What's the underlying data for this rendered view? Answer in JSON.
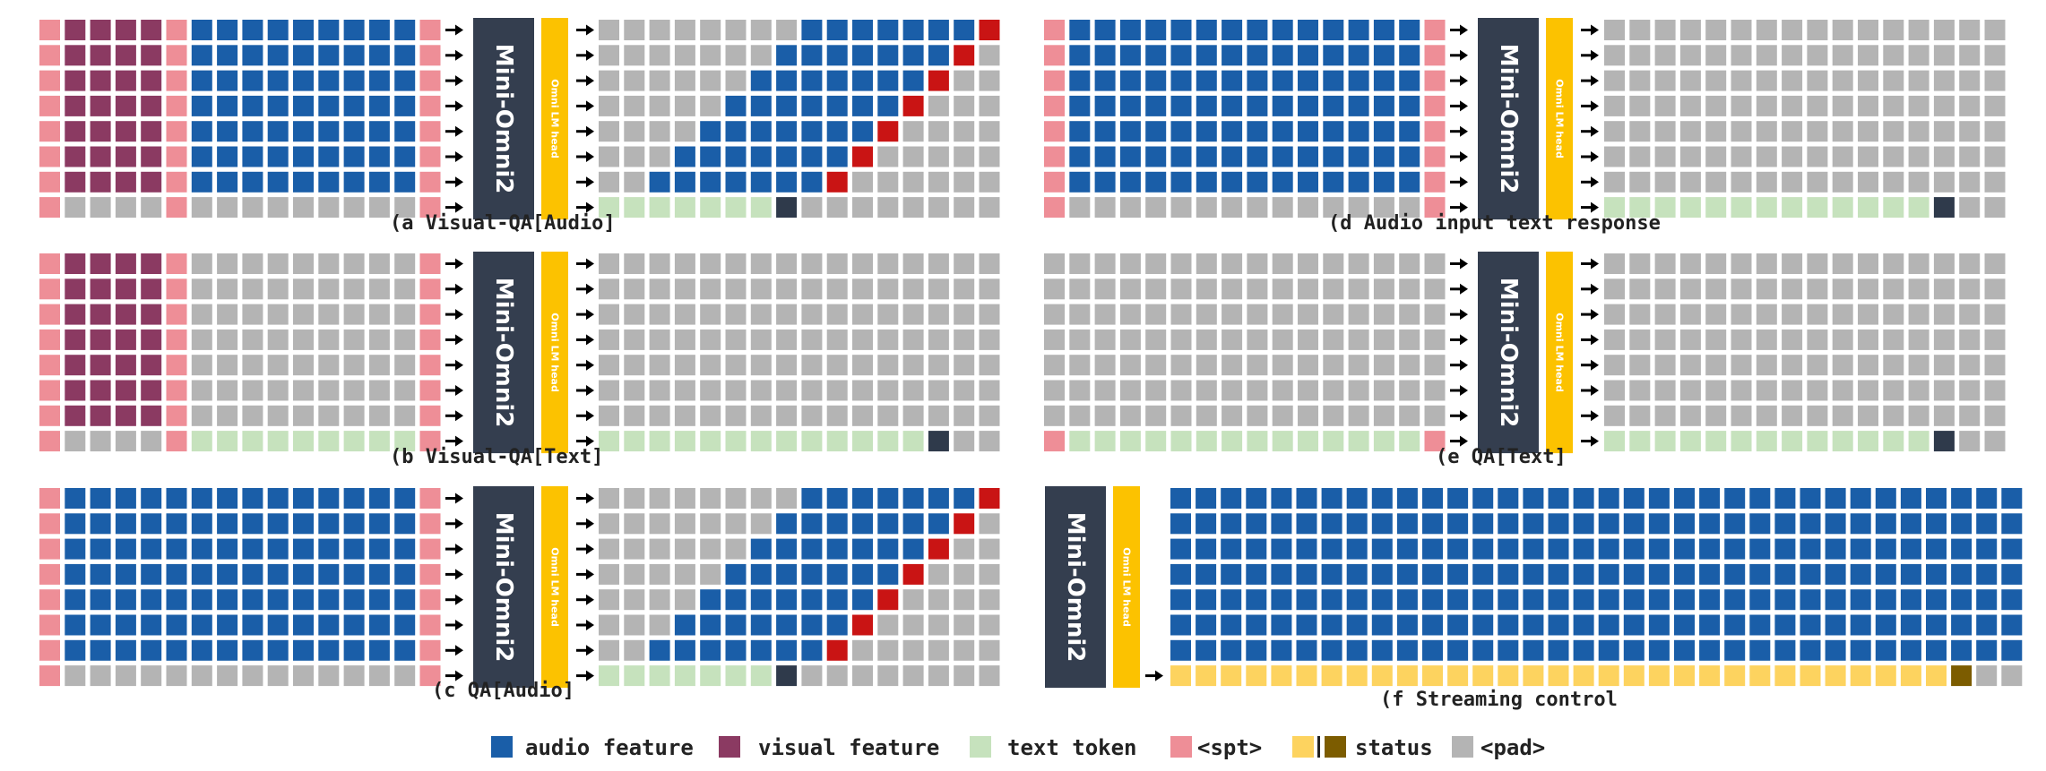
{
  "colors": {
    "audio": "#1a5ea8",
    "visual": "#8b3a62",
    "text": "#c6e2bd",
    "spt": "#ee8e97",
    "status": "#fdd35f",
    "status_dark": "#7c5c00",
    "pad": "#b4b4b4",
    "end": "#2f3a4b",
    "red": "#c91414",
    "model": "#343e4f",
    "head": "#fcc200"
  },
  "model_label": "Mini-Omni2",
  "head_label": "Omni LM head",
  "panels": [
    {
      "id": "a",
      "caption": "(a Visual-QA[Audio]",
      "input": "visual_audio",
      "output": "audio"
    },
    {
      "id": "b",
      "caption": "(b Visual-QA[Text]",
      "input": "visual_text",
      "output": "text"
    },
    {
      "id": "c",
      "caption": "(c QA[Audio]",
      "input": "audio",
      "output": "audio"
    },
    {
      "id": "d",
      "caption": "(d Audio input text response",
      "input": "audio",
      "output": "text"
    },
    {
      "id": "e",
      "caption": "(e QA[Text]",
      "input": "text",
      "output": "text"
    },
    {
      "id": "f",
      "caption": "(f Streaming control",
      "input": "none",
      "output": "stream"
    }
  ],
  "legend": [
    {
      "key": "audio",
      "label": "audio feature"
    },
    {
      "key": "visual",
      "label": "visual feature"
    },
    {
      "key": "text",
      "label": "text token"
    },
    {
      "key": "spt",
      "label": "<spt>"
    },
    {
      "key": "status",
      "label": "status"
    },
    {
      "key": "pad",
      "label": "<pad>"
    }
  ]
}
